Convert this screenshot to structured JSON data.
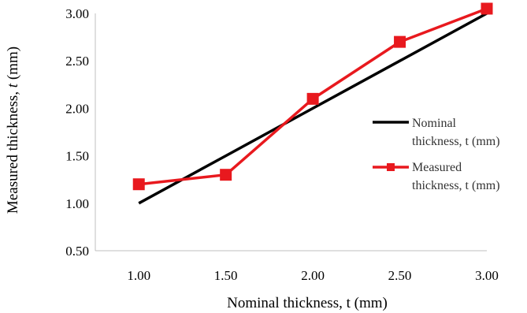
{
  "chart_data": {
    "type": "line",
    "xlabel": "Nominal  thickness,  t (mm)",
    "ylabel_main": "Measured thickness, ",
    "ylabel_italic": "t",
    "ylabel_unit": " (mm)",
    "xlim": [
      0.75,
      3.0
    ],
    "ylim": [
      0.5,
      3.0
    ],
    "x_ticks": [
      "1.00",
      "1.50",
      "2.00",
      "2.50",
      "3.00"
    ],
    "y_ticks": [
      "0.50",
      "1.00",
      "1.50",
      "2.00",
      "2.50",
      "3.00"
    ],
    "x_tick_values": [
      1.0,
      1.5,
      2.0,
      2.5,
      3.0
    ],
    "y_tick_values": [
      0.5,
      1.0,
      1.5,
      2.0,
      2.5,
      3.0
    ],
    "grid": false,
    "legend_position": "right",
    "series": [
      {
        "name_line1": "Nominal",
        "name_line2": "thickness, t (mm)",
        "color": "#000000",
        "marker": "none",
        "x": [
          1.0,
          1.5,
          2.0,
          2.5,
          3.0
        ],
        "y": [
          1.0,
          1.5,
          2.0,
          2.5,
          3.0
        ]
      },
      {
        "name_line1": "Measured",
        "name_line2": "thickness, t (mm)",
        "color": "#e8191e",
        "marker": "square",
        "x": [
          1.0,
          1.5,
          2.0,
          2.5,
          3.0
        ],
        "y": [
          1.2,
          1.3,
          2.1,
          2.7,
          3.05
        ]
      }
    ]
  }
}
